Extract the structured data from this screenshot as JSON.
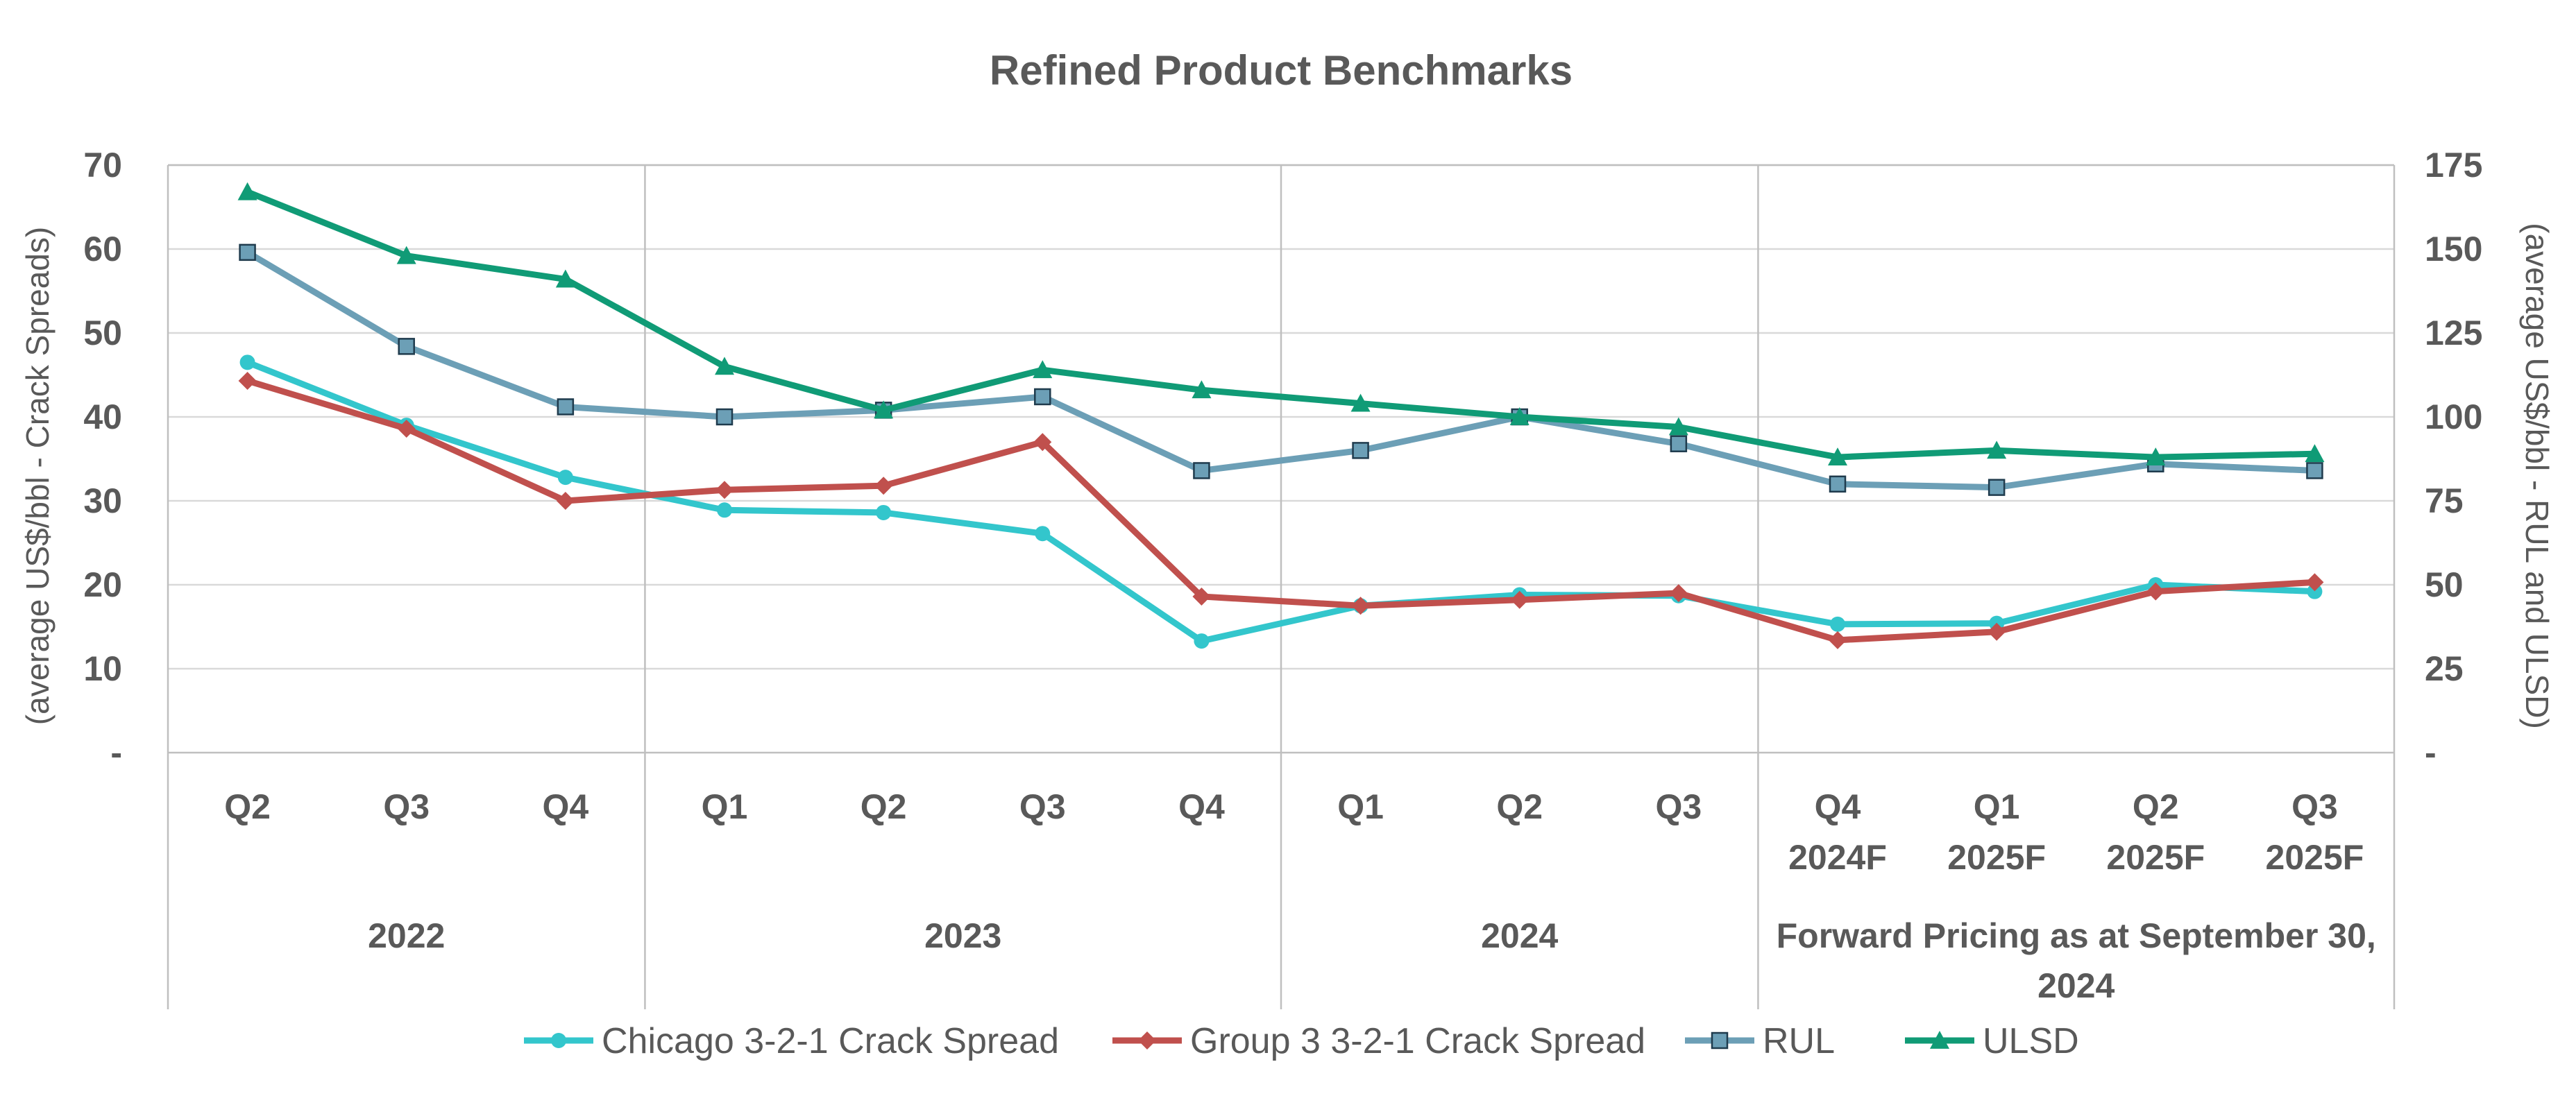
{
  "chart_data": {
    "type": "line",
    "title": "Refined Product Benchmarks",
    "ylabel_left": "(average US$/bbl - Crack Spreads)",
    "ylabel_right": "(average US$/bbl - RUL and ULSD)",
    "ylim_left": [
      0,
      70
    ],
    "ylim_right": [
      0,
      175
    ],
    "yticks_left": [
      "-",
      "10",
      "20",
      "30",
      "40",
      "50",
      "60",
      "70"
    ],
    "yticks_right": [
      "-",
      "25",
      "50",
      "75",
      "100",
      "125",
      "150",
      "175"
    ],
    "categories": [
      {
        "q": "Q2",
        "sub": ""
      },
      {
        "q": "Q3",
        "sub": ""
      },
      {
        "q": "Q4",
        "sub": ""
      },
      {
        "q": "Q1",
        "sub": ""
      },
      {
        "q": "Q2",
        "sub": ""
      },
      {
        "q": "Q3",
        "sub": ""
      },
      {
        "q": "Q4",
        "sub": ""
      },
      {
        "q": "Q1",
        "sub": ""
      },
      {
        "q": "Q2",
        "sub": ""
      },
      {
        "q": "Q3",
        "sub": ""
      },
      {
        "q": "Q4",
        "sub": "2024F"
      },
      {
        "q": "Q1",
        "sub": "2025F"
      },
      {
        "q": "Q2",
        "sub": "2025F"
      },
      {
        "q": "Q3",
        "sub": "2025F"
      }
    ],
    "groups": [
      {
        "label": "2022",
        "label2": "",
        "start": 0,
        "end": 2
      },
      {
        "label": "2023",
        "label2": "",
        "start": 3,
        "end": 6
      },
      {
        "label": "2024",
        "label2": "",
        "start": 7,
        "end": 9
      },
      {
        "label": "Forward Pricing as at September 30,",
        "label2": "2024",
        "start": 10,
        "end": 13
      }
    ],
    "series": [
      {
        "name": "Chicago 3-2-1 Crack Spread",
        "axis": "left",
        "color": "#33c6cc",
        "marker": "circle",
        "values": [
          46.5,
          39.0,
          32.8,
          28.9,
          28.6,
          26.1,
          13.3,
          17.5,
          18.8,
          18.7,
          15.3,
          15.4,
          20.0,
          19.2
        ]
      },
      {
        "name": "Group 3 3-2-1 Crack Spread",
        "axis": "left",
        "color": "#c0504d",
        "marker": "diamond",
        "values": [
          44.3,
          38.6,
          30.0,
          31.3,
          31.8,
          37.0,
          18.6,
          17.5,
          18.2,
          19.0,
          13.4,
          14.4,
          19.2,
          20.3
        ]
      },
      {
        "name": "RUL",
        "axis": "right",
        "color": "#6c9fb6",
        "marker": "square",
        "values": [
          149,
          121,
          103,
          100,
          102,
          106,
          84,
          90,
          100,
          92,
          80,
          79,
          86,
          84
        ]
      },
      {
        "name": "ULSD",
        "axis": "right",
        "color": "#109b76",
        "marker": "triangle",
        "values": [
          167,
          148,
          141,
          115,
          102,
          114,
          108,
          104,
          100,
          97,
          88,
          90,
          88,
          89
        ]
      }
    ]
  }
}
